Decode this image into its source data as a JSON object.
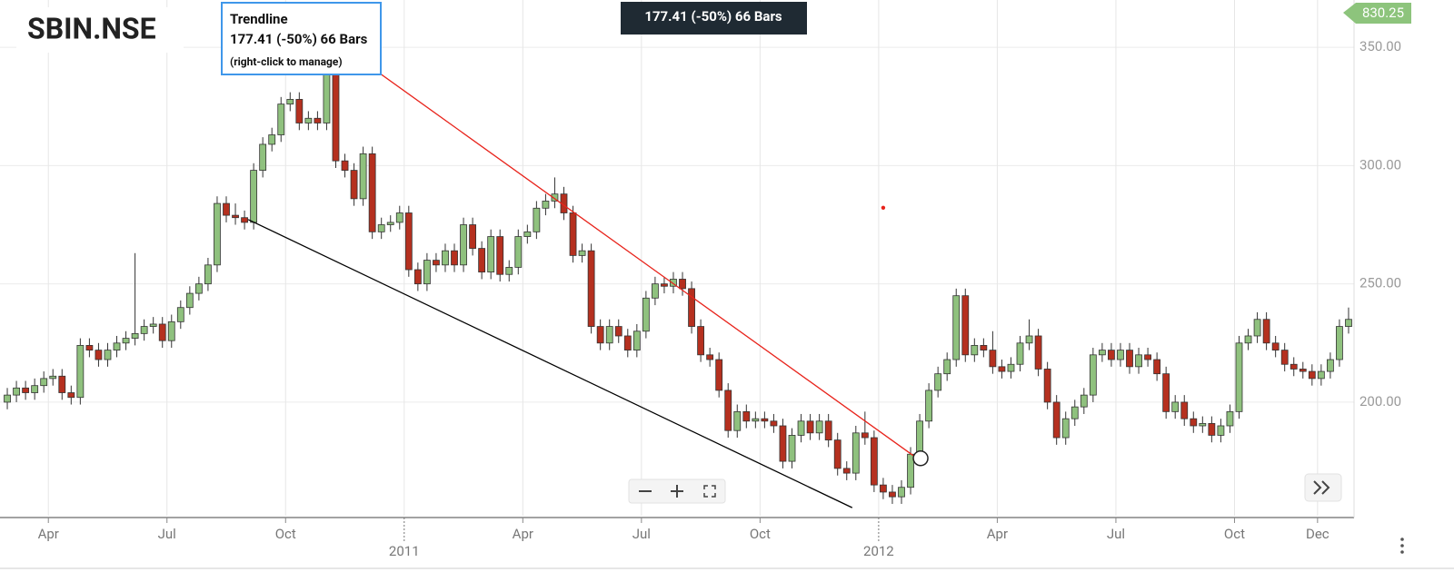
{
  "chart_data": {
    "type": "candlestick",
    "title": "SBIN.NSE",
    "tooltip": {
      "title": "Trendline",
      "value": "177.41 (-50%) 66 Bars",
      "hint": "(right-click to manage)"
    },
    "info_box": "177.41 (-50%) 66 Bars",
    "price_tag": 830.25,
    "up_color": "#8fc17e",
    "down_color": "#b5301f",
    "grid": true,
    "xlim": [
      -0.8,
      147.6
    ],
    "ylim": [
      152,
      370
    ],
    "yticks": [
      {
        "value": 200,
        "label": "200.00"
      },
      {
        "value": 250,
        "label": "250.00"
      },
      {
        "value": 300,
        "label": "300.00"
      },
      {
        "value": 350,
        "label": "350.00"
      }
    ],
    "xticks": [
      {
        "value": 4.5,
        "label": "Apr"
      },
      {
        "value": 17.5,
        "label": "Jul"
      },
      {
        "value": 30.5,
        "label": "Oct"
      },
      {
        "value": 56.5,
        "label": "Apr"
      },
      {
        "value": 69.5,
        "label": "Jul"
      },
      {
        "value": 82.5,
        "label": "Oct"
      },
      {
        "value": 108.5,
        "label": "Apr"
      },
      {
        "value": 121.5,
        "label": "Jul"
      },
      {
        "value": 134.5,
        "label": "Oct"
      },
      {
        "value": 143.6,
        "label": "Dec"
      }
    ],
    "year_ticks": [
      {
        "value": 43.5,
        "label": "2011"
      },
      {
        "value": 95.5,
        "label": "2012"
      }
    ],
    "open": [
      200,
      203,
      206,
      204,
      207,
      210,
      211,
      204,
      202,
      224,
      222,
      218,
      222,
      225,
      227,
      229,
      232,
      233,
      226,
      234,
      240,
      246,
      250,
      258,
      284,
      279,
      278,
      276,
      298,
      309,
      313,
      326,
      328,
      318,
      320,
      318,
      340,
      302,
      298,
      286,
      305,
      272,
      275,
      276,
      280,
      256,
      250,
      260,
      258,
      264,
      258,
      275,
      265,
      255,
      270,
      254,
      257,
      270,
      272,
      282,
      285,
      288,
      280,
      262,
      264,
      232,
      225,
      232,
      228,
      222,
      230,
      244,
      250,
      249,
      252,
      248,
      232,
      220,
      218,
      205,
      188,
      196,
      192,
      193,
      192,
      190,
      175,
      186,
      192,
      187,
      192,
      184,
      172,
      170,
      187,
      185,
      165,
      162,
      160,
      164,
      178,
      192,
      205,
      212,
      218,
      245,
      220,
      224,
      222,
      215,
      213,
      216,
      225,
      228,
      214,
      200,
      185,
      193,
      198,
      203,
      220,
      222,
      218,
      222,
      215,
      220,
      218,
      212,
      196,
      200,
      193,
      190,
      191,
      186,
      190,
      196,
      225,
      228,
      235,
      225,
      222,
      216,
      214,
      213,
      210,
      213,
      218,
      232
    ],
    "high": [
      206,
      209,
      209,
      210,
      213,
      214,
      214,
      207,
      227,
      227,
      225,
      225,
      228,
      230,
      263,
      235,
      236,
      236,
      237,
      243,
      249,
      253,
      261,
      287,
      287,
      284,
      281,
      301,
      312,
      316,
      329,
      331,
      331,
      323,
      323,
      343,
      343,
      305,
      301,
      308,
      308,
      278,
      279,
      283,
      283,
      259,
      263,
      263,
      267,
      267,
      278,
      278,
      268,
      273,
      273,
      260,
      273,
      275,
      285,
      288,
      295,
      291,
      283,
      267,
      267,
      235,
      235,
      235,
      231,
      233,
      247,
      253,
      253,
      255,
      255,
      251,
      235,
      223,
      221,
      208,
      199,
      199,
      196,
      196,
      195,
      193,
      189,
      195,
      195,
      195,
      195,
      187,
      175,
      190,
      196,
      188,
      168,
      165,
      167,
      181,
      195,
      208,
      215,
      221,
      248,
      248,
      227,
      227,
      230,
      218,
      219,
      228,
      235,
      231,
      217,
      203,
      196,
      201,
      206,
      223,
      225,
      225,
      225,
      225,
      223,
      223,
      221,
      215,
      203,
      203,
      196,
      194,
      194,
      193,
      199,
      228,
      231,
      238,
      238,
      228,
      225,
      219,
      217,
      216,
      216,
      221,
      235,
      240
    ],
    "low": [
      197,
      200,
      201,
      201,
      204,
      207,
      201,
      199,
      199,
      219,
      215,
      215,
      219,
      222,
      224,
      226,
      229,
      223,
      223,
      231,
      237,
      243,
      247,
      255,
      276,
      275,
      273,
      273,
      295,
      306,
      310,
      323,
      315,
      315,
      315,
      315,
      299,
      295,
      283,
      283,
      269,
      269,
      272,
      273,
      253,
      247,
      247,
      255,
      255,
      255,
      255,
      262,
      252,
      252,
      251,
      251,
      254,
      267,
      269,
      279,
      282,
      277,
      259,
      259,
      229,
      222,
      222,
      225,
      219,
      219,
      227,
      241,
      246,
      246,
      245,
      229,
      217,
      215,
      202,
      185,
      185,
      189,
      189,
      189,
      187,
      172,
      172,
      183,
      184,
      184,
      181,
      169,
      167,
      167,
      182,
      162,
      159,
      157,
      157,
      161,
      175,
      189,
      202,
      209,
      215,
      217,
      217,
      219,
      212,
      210,
      210,
      213,
      222,
      211,
      197,
      182,
      182,
      190,
      195,
      200,
      217,
      215,
      215,
      212,
      212,
      215,
      209,
      193,
      193,
      190,
      187,
      187,
      183,
      183,
      187,
      193,
      222,
      225,
      222,
      219,
      213,
      211,
      210,
      207,
      207,
      210,
      215,
      229
    ],
    "close": [
      203,
      206,
      204,
      207,
      210,
      211,
      204,
      202,
      224,
      222,
      218,
      222,
      225,
      227,
      229,
      232,
      233,
      226,
      234,
      240,
      246,
      250,
      258,
      284,
      279,
      278,
      276,
      298,
      309,
      313,
      326,
      328,
      318,
      320,
      318,
      340,
      302,
      298,
      286,
      305,
      272,
      275,
      276,
      280,
      256,
      250,
      260,
      258,
      264,
      258,
      275,
      265,
      255,
      270,
      254,
      257,
      270,
      272,
      282,
      285,
      288,
      280,
      262,
      264,
      232,
      225,
      232,
      228,
      222,
      230,
      244,
      250,
      249,
      252,
      248,
      232,
      220,
      218,
      205,
      188,
      196,
      192,
      193,
      192,
      190,
      175,
      186,
      192,
      187,
      192,
      184,
      172,
      170,
      187,
      185,
      165,
      162,
      160,
      164,
      178,
      192,
      205,
      212,
      218,
      245,
      220,
      224,
      222,
      215,
      213,
      216,
      225,
      228,
      214,
      200,
      185,
      193,
      198,
      203,
      220,
      222,
      218,
      222,
      215,
      220,
      218,
      212,
      196,
      200,
      193,
      190,
      191,
      186,
      190,
      196,
      225,
      228,
      235,
      225,
      222,
      216,
      214,
      213,
      210,
      213,
      218,
      232,
      235
    ],
    "trendlines": [
      {
        "color": "#e8231b",
        "start": [
          35.1,
          354.8
        ],
        "end": [
          99.3,
          177.41
        ]
      },
      {
        "color": "#000000",
        "start": [
          26.4,
          277.2
        ],
        "end": [
          92.6,
          155.4
        ]
      }
    ],
    "marker": {
      "color": "#e8231b",
      "point": [
        96,
        282.2
      ]
    }
  }
}
